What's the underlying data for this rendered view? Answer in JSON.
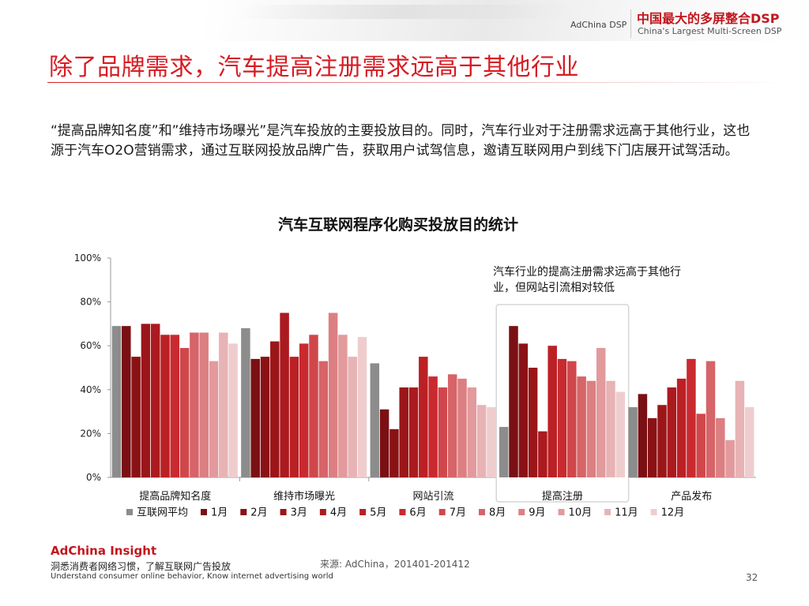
{
  "header": {
    "brand_small": "AdChina DSP",
    "brand_cn": "中国最大的多屏整合DSP",
    "brand_en": "China's Largest Multi-Screen DSP"
  },
  "title": "除了品牌需求，汽车提高注册需求远高于其他行业",
  "body_text": "“提高品牌知名度”和”维持市场曝光”是汽车投放的主要投放目的。同时，汽车行业对于注册需求远高于其他行业，这也源于汽车O2O营销需求，通过互联网投放品牌广告，获取用户试驾信息，邀请互联网用户到线下门店展开试驾活动。",
  "chart_data": {
    "type": "bar",
    "title": "汽车互联网程序化购买投放目的统计",
    "categories": [
      "提高品牌知名度",
      "维持市场曝光",
      "网站引流",
      "提高注册",
      "产品发布"
    ],
    "ylim": [
      0,
      100
    ],
    "yticks": [
      "0%",
      "20%",
      "40%",
      "60%",
      "80%",
      "100%"
    ],
    "legend_position": "bottom",
    "series": [
      {
        "name": "互联网平均",
        "color": "#8c8c8c",
        "values": [
          69,
          68,
          52,
          23,
          32
        ]
      },
      {
        "name": "1月",
        "color": "#7a1013",
        "values": [
          69,
          54,
          31,
          69,
          38
        ]
      },
      {
        "name": "2月",
        "color": "#8a1215",
        "values": [
          55,
          55,
          22,
          61,
          27
        ]
      },
      {
        "name": "3月",
        "color": "#9b1619",
        "values": [
          70,
          62,
          41,
          50,
          33
        ]
      },
      {
        "name": "4月",
        "color": "#ab1a1e",
        "values": [
          70,
          75,
          41,
          21,
          41
        ]
      },
      {
        "name": "5月",
        "color": "#bb2025",
        "values": [
          65,
          55,
          55,
          60,
          45
        ]
      },
      {
        "name": "6月",
        "color": "#c92a2f",
        "values": [
          65,
          61,
          46,
          54,
          54
        ]
      },
      {
        "name": "7月",
        "color": "#d0474b",
        "values": [
          59,
          65,
          41,
          53,
          29
        ]
      },
      {
        "name": "8月",
        "color": "#d66468",
        "values": [
          66,
          53,
          47,
          46,
          53
        ]
      },
      {
        "name": "9月",
        "color": "#dc7f82",
        "values": [
          66,
          75,
          45,
          44,
          27
        ]
      },
      {
        "name": "10月",
        "color": "#e29a9c",
        "values": [
          53,
          65,
          41,
          59,
          17
        ]
      },
      {
        "name": "11月",
        "color": "#e8b3b5",
        "values": [
          66,
          55,
          33,
          44,
          44
        ]
      },
      {
        "name": "12月",
        "color": "#efcdce",
        "values": [
          61,
          64,
          32,
          39,
          32
        ]
      }
    ],
    "annotation": {
      "text_line1": "汽车行业的提高注册需求远高于其他行",
      "text_line2": "业，但网站引流相对较低",
      "highlight_category": "提高注册"
    }
  },
  "footer": {
    "brand": "AdChina Insight",
    "tagline_cn": "洞悉消费者网络习惯，了解互联网广告投放",
    "tagline_en": "Understand consumer online behavior, Know internet advertising world",
    "source": "来源: AdChina，201401-201412",
    "page_number": "32"
  }
}
